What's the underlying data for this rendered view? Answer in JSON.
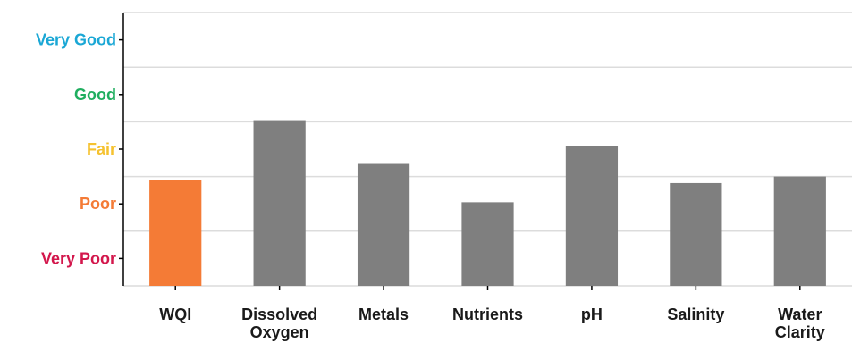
{
  "chart_data": {
    "type": "bar",
    "title": "",
    "xlabel": "",
    "ylabel": "",
    "categories": [
      "WQI",
      "Dissolved Oxygen",
      "Metals",
      "Nutrients",
      "pH",
      "Salinity",
      "Water Clarity"
    ],
    "values": [
      2.43,
      3.53,
      2.73,
      2.03,
      3.05,
      2.38,
      2.5
    ],
    "bar_colors": [
      "#F47B36",
      "#7F7F7F",
      "#7F7F7F",
      "#7F7F7F",
      "#7F7F7F",
      "#7F7F7F",
      "#7F7F7F"
    ],
    "ylim": [
      0.5,
      5.5
    ],
    "yticks": [
      {
        "value": 1,
        "label": "Very Poor",
        "color": "#D3174C"
      },
      {
        "value": 2,
        "label": "Poor",
        "color": "#F47B36"
      },
      {
        "value": 3,
        "label": "Fair",
        "color": "#F5C230"
      },
      {
        "value": 4,
        "label": "Good",
        "color": "#1FAE5F"
      },
      {
        "value": 5,
        "label": "Very Good",
        "color": "#1AA7D5"
      }
    ],
    "gridlines": [
      0.5,
      1.5,
      2.5,
      3.5,
      4.5,
      5.5
    ],
    "grid": true,
    "legend": false
  }
}
